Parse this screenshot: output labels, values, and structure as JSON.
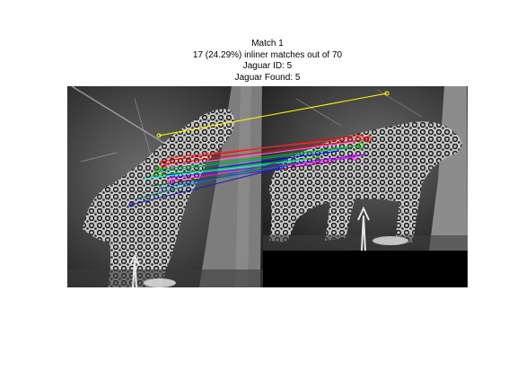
{
  "figure": {
    "title_lines": [
      "Match 1",
      "17 (24.29%) inliner matches out of 70",
      "Jaguar ID: 5",
      "Jaguar Found: 5"
    ]
  },
  "images": {
    "left": {
      "subject": "jaguar climbing tree (camera trap, grayscale)"
    },
    "right": {
      "subject": "jaguar walking near tree (camera trap, grayscale)"
    }
  },
  "matches": {
    "inliers": 17,
    "total": 70,
    "percent": 24.29,
    "line_colors": [
      "#ffff00",
      "#ff0000",
      "#00c000",
      "#0000ff",
      "#ff00ff",
      "#00ffff",
      "#800080",
      "#008080"
    ]
  }
}
